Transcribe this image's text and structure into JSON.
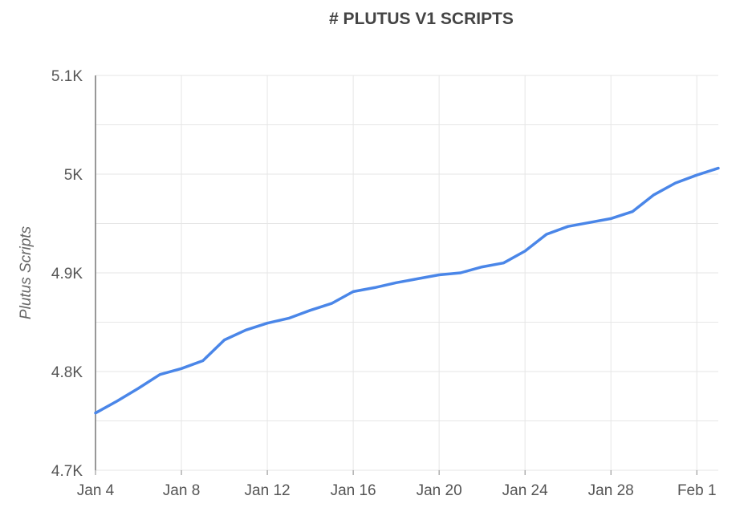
{
  "chart_data": {
    "type": "line",
    "title": "# PLUTUS V1 SCRIPTS",
    "xlabel": "",
    "ylabel": "Plutus Scripts",
    "x_ticks": [
      "Jan 4",
      "Jan 8",
      "Jan 12",
      "Jan 16",
      "Jan 20",
      "Jan 24",
      "Jan 28",
      "Feb 1"
    ],
    "y_ticks": [
      "4.7K",
      "4.8K",
      "4.9K",
      "5K",
      "5.1K"
    ],
    "ylim": [
      4700,
      5100
    ],
    "xlim": [
      "2023-01-04",
      "2023-02-02"
    ],
    "grid": true,
    "line_color": "#4a86e8",
    "series": [
      {
        "x": [
          "2023-01-04",
          "2023-01-05",
          "2023-01-06",
          "2023-01-07",
          "2023-01-08",
          "2023-01-09",
          "2023-01-10",
          "2023-01-11",
          "2023-01-12",
          "2023-01-13",
          "2023-01-14",
          "2023-01-15",
          "2023-01-16",
          "2023-01-17",
          "2023-01-18",
          "2023-01-19",
          "2023-01-20",
          "2023-01-21",
          "2023-01-22",
          "2023-01-23",
          "2023-01-24",
          "2023-01-25",
          "2023-01-26",
          "2023-01-27",
          "2023-01-28",
          "2023-01-29",
          "2023-01-30",
          "2023-01-31",
          "2023-02-01",
          "2023-02-02"
        ],
        "y": [
          4758,
          4770,
          4783,
          4797,
          4803,
          4811,
          4832,
          4842,
          4849,
          4854,
          4862,
          4869,
          4881,
          4885,
          4890,
          4894,
          4898,
          4900,
          4906,
          4910,
          4922,
          4939,
          4947,
          4951,
          4955,
          4962,
          4979,
          4991,
          4999,
          5006
        ]
      }
    ]
  }
}
